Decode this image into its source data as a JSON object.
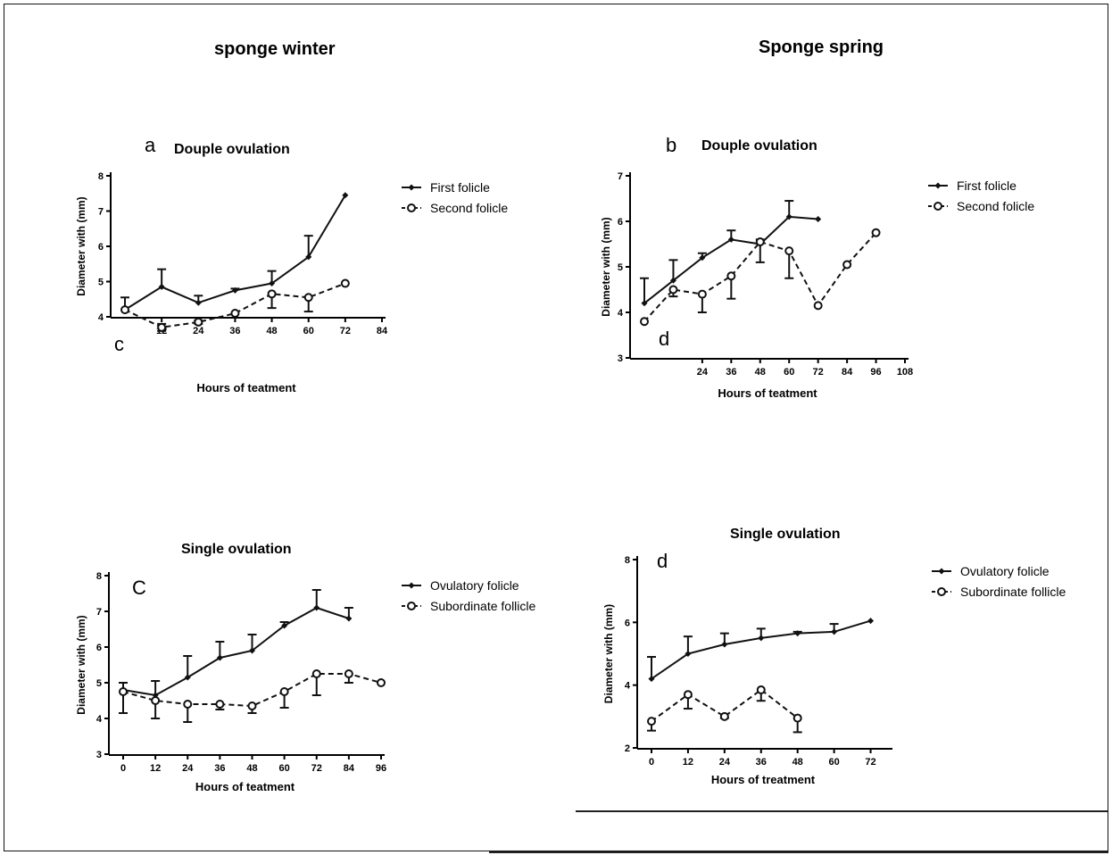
{
  "headings": {
    "left": "sponge winter",
    "right": "Sponge spring"
  },
  "chart_data": [
    {
      "type": "line",
      "letter": "a",
      "extra_letter": "c",
      "title": "Douple ovulation",
      "xlabel": "Hours of teatment",
      "ylabel": "Diameter with (mm)",
      "xlim": [
        0,
        84
      ],
      "ylim": [
        4,
        8
      ],
      "xticks": [
        12,
        24,
        36,
        48,
        60,
        72,
        84
      ],
      "yticks": [
        4,
        5,
        6,
        7,
        8
      ],
      "series": [
        {
          "name": "First folicle",
          "style": "solid",
          "marker": "diamond",
          "x": [
            0,
            12,
            24,
            36,
            48,
            60,
            72
          ],
          "y": [
            4.2,
            4.85,
            4.4,
            4.75,
            4.95,
            5.7,
            7.45
          ],
          "err_up": [
            0.35,
            0.5,
            0.2,
            0.05,
            0.35,
            0.6,
            0
          ],
          "err_down": [
            0,
            0,
            0,
            0,
            0,
            0,
            0
          ]
        },
        {
          "name": "Second folicle",
          "style": "dashed",
          "marker": "circle",
          "x": [
            0,
            12,
            24,
            36,
            48,
            60,
            72
          ],
          "y": [
            4.2,
            3.7,
            3.85,
            4.1,
            4.65,
            4.55,
            4.95
          ],
          "err_up": [
            0,
            0.1,
            0.05,
            0,
            0,
            0,
            0
          ],
          "err_down": [
            0,
            0.1,
            0.05,
            0,
            0.4,
            0.4,
            0
          ]
        }
      ]
    },
    {
      "type": "line",
      "letter": "b",
      "extra_letter": "d",
      "title": "Douple ovulation",
      "xlabel": "Hours of teatment",
      "ylabel": "Diameter with (mm)",
      "xlim": [
        0,
        108
      ],
      "ylim": [
        3,
        7
      ],
      "xticks": [
        24,
        36,
        48,
        60,
        72,
        84,
        96,
        108
      ],
      "yticks": [
        3,
        4,
        5,
        6,
        7
      ],
      "series": [
        {
          "name": "First folicle",
          "style": "solid",
          "marker": "diamond",
          "x": [
            0,
            12,
            24,
            36,
            48,
            60,
            72
          ],
          "y": [
            4.2,
            4.7,
            5.2,
            5.6,
            5.5,
            6.1,
            6.05
          ],
          "err_up": [
            0.55,
            0.45,
            0.1,
            0.2,
            0.1,
            0.35,
            0
          ],
          "err_down": [
            0,
            0,
            0,
            0,
            0,
            0,
            0
          ]
        },
        {
          "name": "Second folicle",
          "style": "dashed",
          "marker": "circle",
          "x": [
            0,
            12,
            24,
            36,
            48,
            60,
            72,
            84,
            96
          ],
          "y": [
            3.8,
            4.5,
            4.4,
            4.8,
            5.55,
            5.35,
            4.15,
            5.05,
            5.75
          ],
          "err_up": [
            0,
            0,
            0,
            0,
            0,
            0,
            0,
            0,
            0
          ],
          "err_down": [
            0,
            0.15,
            0.4,
            0.5,
            0.45,
            0.6,
            0,
            0,
            0
          ]
        }
      ]
    },
    {
      "type": "line",
      "letter": "C",
      "title": "Single ovulation",
      "xlabel": "Hours of teatment",
      "ylabel": "Diameter with (mm)",
      "xlim": [
        0,
        96
      ],
      "ylim": [
        3,
        8
      ],
      "xticks": [
        0,
        12,
        24,
        36,
        48,
        60,
        72,
        84,
        96
      ],
      "yticks": [
        3,
        4,
        5,
        6,
        7,
        8
      ],
      "series": [
        {
          "name": "Ovulatory folicle",
          "style": "solid",
          "marker": "diamond",
          "x": [
            0,
            12,
            24,
            36,
            48,
            60,
            72,
            84
          ],
          "y": [
            4.8,
            4.65,
            5.15,
            5.7,
            5.9,
            6.6,
            7.1,
            6.8
          ],
          "err_up": [
            0.2,
            0.4,
            0.6,
            0.45,
            0.45,
            0.1,
            0.5,
            0.3
          ],
          "err_down": [
            0,
            0,
            0,
            0,
            0,
            0,
            0,
            0
          ]
        },
        {
          "name": "Subordinate follicle",
          "style": "dashed",
          "marker": "circle",
          "x": [
            0,
            12,
            24,
            36,
            48,
            60,
            72,
            84,
            96
          ],
          "y": [
            4.75,
            4.5,
            4.4,
            4.4,
            4.35,
            4.75,
            5.25,
            5.25,
            5.0
          ],
          "err_up": [
            0,
            0,
            0,
            0,
            0,
            0,
            0,
            0,
            0
          ],
          "err_down": [
            0.6,
            0.5,
            0.5,
            0.15,
            0.2,
            0.45,
            0.6,
            0.25,
            0
          ]
        }
      ]
    },
    {
      "type": "line",
      "letter": "d",
      "title": "Single ovulation",
      "xlabel": "Hours of treatment",
      "ylabel": "Diameter with (mm)",
      "xlim": [
        0,
        78
      ],
      "ylim": [
        2,
        8
      ],
      "xticks": [
        0,
        12,
        24,
        36,
        48,
        60,
        72
      ],
      "yticks": [
        2,
        4,
        6,
        8
      ],
      "series": [
        {
          "name": "Ovulatory folicle",
          "style": "solid",
          "marker": "diamond",
          "x": [
            0,
            12,
            24,
            36,
            48,
            60,
            72
          ],
          "y": [
            4.2,
            5.0,
            5.3,
            5.5,
            5.65,
            5.7,
            6.05
          ],
          "err_up": [
            0.7,
            0.55,
            0.35,
            0.3,
            0.05,
            0.25,
            0
          ],
          "err_down": [
            0,
            0,
            0,
            0,
            0,
            0,
            0
          ]
        },
        {
          "name": "Subordinate follicle",
          "style": "dashed",
          "marker": "circle",
          "x": [
            0,
            12,
            24,
            36,
            48
          ],
          "y": [
            2.85,
            3.7,
            3.0,
            3.85,
            2.95
          ],
          "err_up": [
            0,
            0,
            0,
            0,
            0
          ],
          "err_down": [
            0.3,
            0.45,
            0.05,
            0.35,
            0.45
          ]
        }
      ]
    }
  ]
}
